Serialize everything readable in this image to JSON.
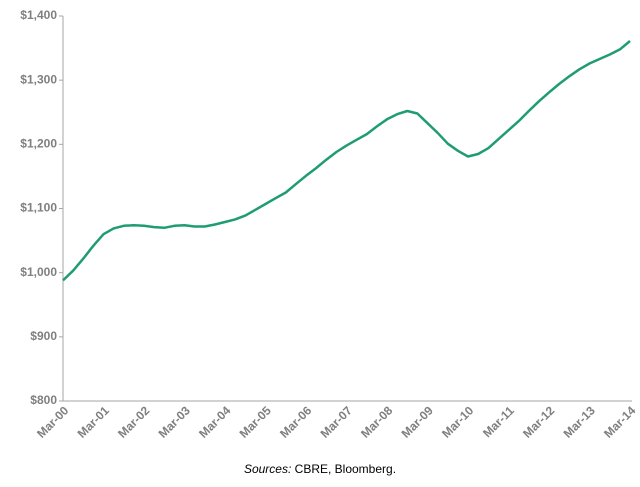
{
  "chart_data": {
    "type": "line",
    "categories": [
      "Mar-00",
      null,
      null,
      null,
      "Mar-01",
      null,
      null,
      null,
      "Mar-02",
      null,
      null,
      null,
      "Mar-03",
      null,
      null,
      null,
      "Mar-04",
      null,
      null,
      null,
      "Mar-05",
      null,
      null,
      null,
      "Mar-06",
      null,
      null,
      null,
      "Mar-07",
      null,
      null,
      null,
      "Mar-08",
      null,
      null,
      null,
      "Mar-09",
      null,
      null,
      null,
      "Mar-10",
      null,
      null,
      null,
      "Mar-11",
      null,
      null,
      null,
      "Mar-12",
      null,
      null,
      null,
      "Mar-13",
      null,
      null,
      null,
      "Mar-14"
    ],
    "series": [
      {
        "color": "#1f9c72",
        "values": [
          988,
          1003,
          1022,
          1042,
          1060,
          1069,
          1073,
          1074,
          1073,
          1071,
          1070,
          1073,
          1074,
          1072,
          1072,
          1075,
          1079,
          1083,
          1089,
          1098,
          1107,
          1116,
          1125,
          1138,
          1151,
          1163,
          1176,
          1188,
          1198,
          1207,
          1216,
          1228,
          1239,
          1247,
          1252,
          1248,
          1233,
          1218,
          1201,
          1190,
          1181,
          1185,
          1194,
          1208,
          1222,
          1236,
          1252,
          1267,
          1281,
          1294,
          1306,
          1317,
          1326,
          1333,
          1340,
          1348,
          1361
        ]
      }
    ],
    "ylim": [
      800,
      1400
    ],
    "yticks": [
      {
        "value": 800,
        "label": "$800"
      },
      {
        "value": 900,
        "label": "$900"
      },
      {
        "value": 1000,
        "label": "$1,000"
      },
      {
        "value": 1100,
        "label": "$1,100"
      },
      {
        "value": 1200,
        "label": "$1,200"
      },
      {
        "value": 1300,
        "label": "$1,300"
      },
      {
        "value": 1400,
        "label": "$1,400"
      }
    ],
    "grid": false,
    "source": {
      "label": "Sources:",
      "text": "CBRE, Bloomberg."
    }
  }
}
